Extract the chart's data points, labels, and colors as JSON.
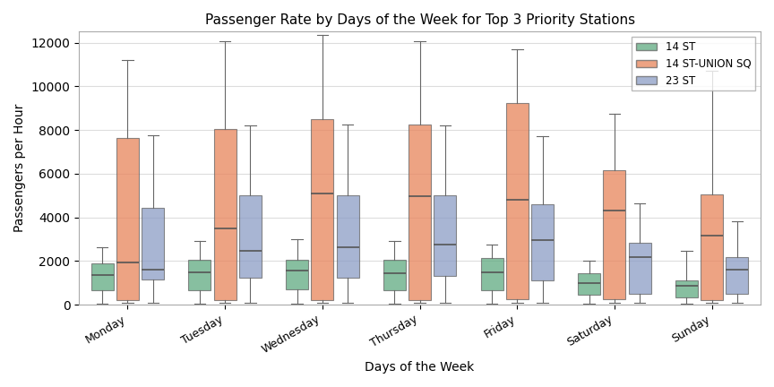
{
  "title": "Passenger Rate by Days of the Week for Top 3 Priority Stations",
  "xlabel": "Days of the Week",
  "ylabel": "Passengers per Hour",
  "days": [
    "Monday",
    "Tuesday",
    "Wednesday",
    "Thursday",
    "Friday",
    "Saturday",
    "Sunday"
  ],
  "stations": [
    "14 ST",
    "14 ST-UNION SQ",
    "23 ST"
  ],
  "colors": [
    "#5faa80",
    "#e8845a",
    "#8b9cc5"
  ],
  "alpha": 0.75,
  "ylim": [
    0,
    12500
  ],
  "yticks": [
    0,
    2000,
    4000,
    6000,
    8000,
    10000,
    12000
  ],
  "box_width": 0.23,
  "offsets": [
    -0.26,
    0.0,
    0.26
  ],
  "box_data": {
    "14 ST": {
      "Monday": {
        "whislo": 50,
        "q1": 650,
        "med": 1350,
        "q3": 1900,
        "whishi": 2650
      },
      "Tuesday": {
        "whislo": 50,
        "q1": 650,
        "med": 1500,
        "q3": 2050,
        "whishi": 2900
      },
      "Wednesday": {
        "whislo": 50,
        "q1": 700,
        "med": 1550,
        "q3": 2050,
        "whishi": 3000
      },
      "Thursday": {
        "whislo": 50,
        "q1": 650,
        "med": 1450,
        "q3": 2050,
        "whishi": 2900
      },
      "Friday": {
        "whislo": 50,
        "q1": 650,
        "med": 1500,
        "q3": 2150,
        "whishi": 2750
      },
      "Saturday": {
        "whislo": 50,
        "q1": 450,
        "med": 1000,
        "q3": 1450,
        "whishi": 2000
      },
      "Sunday": {
        "whislo": 50,
        "q1": 350,
        "med": 850,
        "q3": 1100,
        "whishi": 2450
      }
    },
    "14 ST-UNION SQ": {
      "Monday": {
        "whislo": 100,
        "q1": 200,
        "med": 1950,
        "q3": 7650,
        "whishi": 11200
      },
      "Tuesday": {
        "whislo": 100,
        "q1": 200,
        "med": 3500,
        "q3": 8050,
        "whishi": 12050
      },
      "Wednesday": {
        "whislo": 100,
        "q1": 200,
        "med": 5100,
        "q3": 8500,
        "whishi": 12350
      },
      "Thursday": {
        "whislo": 100,
        "q1": 200,
        "med": 4950,
        "q3": 8250,
        "whishi": 12050
      },
      "Friday": {
        "whislo": 100,
        "q1": 250,
        "med": 4800,
        "q3": 9250,
        "whishi": 11700
      },
      "Saturday": {
        "whislo": 100,
        "q1": 250,
        "med": 4300,
        "q3": 6150,
        "whishi": 8750
      },
      "Sunday": {
        "whislo": 100,
        "q1": 200,
        "med": 3150,
        "q3": 5050,
        "whishi": 10700
      }
    },
    "23 ST": {
      "Monday": {
        "whislo": 100,
        "q1": 1150,
        "med": 1600,
        "q3": 4450,
        "whishi": 7750
      },
      "Tuesday": {
        "whislo": 100,
        "q1": 1250,
        "med": 2450,
        "q3": 5000,
        "whishi": 8200
      },
      "Wednesday": {
        "whislo": 100,
        "q1": 1250,
        "med": 2650,
        "q3": 5000,
        "whishi": 8250
      },
      "Thursday": {
        "whislo": 100,
        "q1": 1300,
        "med": 2750,
        "q3": 5000,
        "whishi": 8200
      },
      "Friday": {
        "whislo": 100,
        "q1": 1100,
        "med": 2950,
        "q3": 4600,
        "whishi": 7700
      },
      "Saturday": {
        "whislo": 100,
        "q1": 500,
        "med": 2200,
        "q3": 2850,
        "whishi": 4650
      },
      "Sunday": {
        "whislo": 100,
        "q1": 500,
        "med": 1600,
        "q3": 2200,
        "whishi": 3800
      }
    }
  }
}
